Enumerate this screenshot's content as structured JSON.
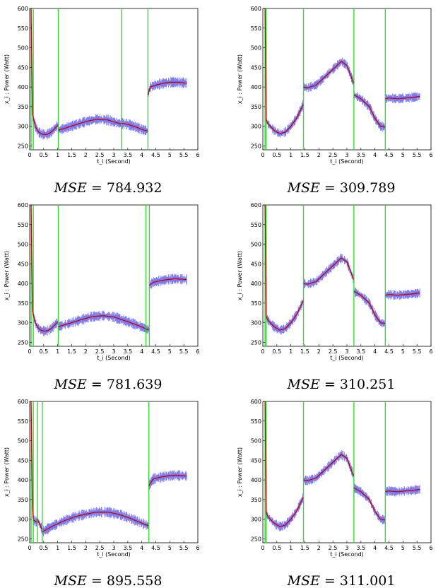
{
  "figure": {
    "panels": [
      {
        "mse_label": "MSE",
        "mse_value": "784.932"
      },
      {
        "mse_label": "MSE",
        "mse_value": "309.789"
      },
      {
        "mse_label": "MSE",
        "mse_value": "781.639"
      },
      {
        "mse_label": "MSE",
        "mse_value": "310.251"
      },
      {
        "mse_label": "MSE",
        "mse_value": "895.558"
      },
      {
        "mse_label": "MSE",
        "mse_value": "311.001"
      }
    ]
  },
  "colors": {
    "noisy": "#7b7bf2",
    "fit": "#cc0000",
    "changepoint": "#33dd33"
  },
  "chart_data": [
    {
      "type": "line",
      "xlabel": "t_i (Second)",
      "ylabel": "x_i : Power (Watt)",
      "xlim": [
        0,
        6
      ],
      "ylim": [
        240,
        600
      ],
      "xticks": [
        0,
        0.5,
        1,
        1.5,
        2,
        2.5,
        3,
        3.5,
        4,
        4.5,
        5,
        5.5,
        6
      ],
      "yticks": [
        250,
        300,
        350,
        400,
        450,
        500,
        550,
        600
      ],
      "changepoints": [
        0.05,
        0.13,
        1.02,
        3.27,
        4.22
      ],
      "series": [
        {
          "x": [
            0.05,
            0.1,
            0.2,
            0.3,
            0.4,
            0.5,
            0.6,
            0.7,
            0.8,
            0.9,
            1.0,
            1.01
          ],
          "values": [
            600,
            330,
            300,
            287,
            281,
            279,
            279,
            282,
            287,
            295,
            302,
            304
          ]
        },
        {
          "x": [
            1.02,
            1.3,
            1.6,
            2.0,
            2.4,
            2.8,
            3.0,
            3.26
          ],
          "values": [
            290,
            296,
            303,
            312,
            318,
            316,
            311,
            306
          ]
        },
        {
          "x": [
            3.27,
            3.5,
            3.8,
            4.0,
            4.21
          ],
          "values": [
            308,
            305,
            298,
            292,
            288
          ]
        },
        {
          "x": [
            4.22,
            4.3,
            4.5,
            4.8,
            5.0,
            5.3,
            5.6
          ],
          "values": [
            380,
            400,
            405,
            410,
            412,
            412,
            410
          ]
        }
      ],
      "noise": 10
    },
    {
      "type": "line",
      "xlabel": "t_i (Second)",
      "ylabel": "x_i : Power (Watt)",
      "xlim": [
        0,
        6
      ],
      "ylim": [
        240,
        600
      ],
      "xticks": [
        0,
        0.5,
        1,
        1.5,
        2,
        2.5,
        3,
        3.5,
        4,
        4.5,
        5,
        5.5,
        6
      ],
      "yticks": [
        250,
        300,
        350,
        400,
        450,
        500,
        550,
        600
      ],
      "changepoints": [
        0.08,
        0.12,
        1.45,
        3.25,
        4.37
      ],
      "series": [
        {
          "x": [
            0.08,
            0.12,
            0.2,
            0.4,
            0.6,
            0.8,
            1.0,
            1.2,
            1.44
          ],
          "values": [
            600,
            315,
            305,
            290,
            281,
            285,
            300,
            320,
            355
          ]
        },
        {
          "x": [
            1.45,
            1.6,
            1.9,
            2.2,
            2.5,
            2.8,
            3.0,
            3.24
          ],
          "values": [
            400,
            398,
            405,
            425,
            445,
            465,
            455,
            410
          ]
        },
        {
          "x": [
            3.25,
            3.5,
            3.8,
            4.0,
            4.2,
            4.36
          ],
          "values": [
            380,
            370,
            350,
            320,
            300,
            298
          ]
        },
        {
          "x": [
            4.37,
            4.5,
            4.8,
            5.1,
            5.4,
            5.6
          ],
          "values": [
            370,
            372,
            370,
            372,
            374,
            376
          ]
        }
      ],
      "noise": 9
    },
    {
      "type": "line",
      "xlabel": "t_i (Second)",
      "ylabel": "x_i : Power (Watt)",
      "xlim": [
        0,
        6
      ],
      "ylim": [
        240,
        600
      ],
      "xticks": [
        0,
        0.5,
        1,
        1.5,
        2,
        2.5,
        3,
        3.5,
        4,
        4.5,
        5,
        5.5,
        6
      ],
      "yticks": [
        250,
        300,
        350,
        400,
        450,
        500,
        550,
        600
      ],
      "changepoints": [
        0.05,
        0.13,
        1.02,
        4.15,
        4.27
      ],
      "series": [
        {
          "x": [
            0.05,
            0.1,
            0.2,
            0.3,
            0.4,
            0.5,
            0.6,
            0.7,
            0.8,
            0.9,
            1.01
          ],
          "values": [
            600,
            330,
            300,
            287,
            281,
            279,
            279,
            282,
            287,
            295,
            302
          ]
        },
        {
          "x": [
            1.02,
            1.4,
            1.8,
            2.2,
            2.6,
            3.0,
            3.4,
            3.8,
            4.14
          ],
          "values": [
            290,
            298,
            307,
            315,
            318,
            315,
            305,
            295,
            285
          ]
        },
        {
          "x": [
            4.15,
            4.26
          ],
          "values": [
            283,
            283
          ]
        },
        {
          "x": [
            4.27,
            4.4,
            4.6,
            4.9,
            5.2,
            5.6
          ],
          "values": [
            395,
            403,
            406,
            410,
            412,
            410
          ]
        }
      ],
      "noise": 10
    },
    {
      "type": "line",
      "xlabel": "t_i (Second)",
      "ylabel": "x_i : Power (Watt)",
      "xlim": [
        0,
        6
      ],
      "ylim": [
        240,
        600
      ],
      "xticks": [
        0,
        0.5,
        1,
        1.5,
        2,
        2.5,
        3,
        3.5,
        4,
        4.5,
        5,
        5.5,
        6
      ],
      "yticks": [
        250,
        300,
        350,
        400,
        450,
        500,
        550,
        600
      ],
      "changepoints": [
        0.08,
        0.12,
        1.45,
        3.25,
        4.37
      ],
      "series": [
        {
          "x": [
            0.08,
            0.12,
            0.2,
            0.4,
            0.6,
            0.8,
            1.0,
            1.2,
            1.44
          ],
          "values": [
            600,
            315,
            305,
            290,
            281,
            285,
            300,
            320,
            355
          ]
        },
        {
          "x": [
            1.45,
            1.6,
            1.9,
            2.2,
            2.5,
            2.8,
            3.0,
            3.24
          ],
          "values": [
            400,
            398,
            405,
            425,
            445,
            465,
            455,
            410
          ]
        },
        {
          "x": [
            3.25,
            3.5,
            3.8,
            4.0,
            4.2,
            4.36
          ],
          "values": [
            380,
            370,
            350,
            320,
            300,
            298
          ]
        },
        {
          "x": [
            4.37,
            4.5,
            4.8,
            5.1,
            5.4,
            5.6
          ],
          "values": [
            370,
            372,
            370,
            372,
            374,
            376
          ]
        }
      ],
      "noise": 9
    },
    {
      "type": "line",
      "xlabel": "t_i (Second)",
      "ylabel": "x_i : Power (Watt)",
      "xlim": [
        0,
        6
      ],
      "ylim": [
        240,
        600
      ],
      "xticks": [
        0,
        0.5,
        1,
        1.5,
        2,
        2.5,
        3,
        3.5,
        4,
        4.5,
        5,
        5.5,
        6
      ],
      "yticks": [
        250,
        300,
        350,
        400,
        450,
        500,
        550,
        600
      ],
      "changepoints": [
        0.05,
        0.13,
        0.28,
        0.45,
        4.25
      ],
      "series": [
        {
          "x": [
            0.05,
            0.1,
            0.13
          ],
          "values": [
            600,
            330,
            300
          ]
        },
        {
          "x": [
            0.13,
            0.2,
            0.27
          ],
          "values": [
            298,
            295,
            292
          ]
        },
        {
          "x": [
            0.28,
            0.35,
            0.44
          ],
          "values": [
            300,
            288,
            275
          ]
        },
        {
          "x": [
            0.45,
            0.8,
            1.2,
            1.6,
            2.0,
            2.4,
            2.8,
            3.2,
            3.6,
            4.0,
            4.24
          ],
          "values": [
            268,
            282,
            295,
            306,
            313,
            318,
            318,
            312,
            302,
            290,
            283
          ]
        },
        {
          "x": [
            4.25,
            4.4,
            4.6,
            4.9,
            5.2,
            5.6
          ],
          "values": [
            385,
            402,
            406,
            410,
            412,
            410
          ]
        }
      ],
      "noise": 10
    },
    {
      "type": "line",
      "xlabel": "t_i (Second)",
      "ylabel": "x_i : Power (Watt)",
      "xlim": [
        0,
        6
      ],
      "ylim": [
        240,
        600
      ],
      "xticks": [
        0,
        0.5,
        1,
        1.5,
        2,
        2.5,
        3,
        3.5,
        4,
        4.5,
        5,
        5.5,
        6
      ],
      "yticks": [
        250,
        300,
        350,
        400,
        450,
        500,
        550,
        600
      ],
      "changepoints": [
        0.08,
        0.12,
        1.45,
        3.25,
        4.37
      ],
      "series": [
        {
          "x": [
            0.08,
            0.12,
            0.2,
            0.4,
            0.6,
            0.8,
            1.0,
            1.2,
            1.44
          ],
          "values": [
            600,
            315,
            305,
            290,
            281,
            285,
            300,
            320,
            355
          ]
        },
        {
          "x": [
            1.45,
            1.6,
            1.9,
            2.2,
            2.5,
            2.8,
            3.0,
            3.24
          ],
          "values": [
            400,
            398,
            405,
            425,
            445,
            465,
            455,
            410
          ]
        },
        {
          "x": [
            3.25,
            3.5,
            3.8,
            4.0,
            4.2,
            4.36
          ],
          "values": [
            380,
            370,
            350,
            320,
            300,
            298
          ]
        },
        {
          "x": [
            4.37,
            4.5,
            4.8,
            5.1,
            5.4,
            5.6
          ],
          "values": [
            370,
            372,
            370,
            372,
            374,
            376
          ]
        }
      ],
      "noise": 9
    }
  ]
}
